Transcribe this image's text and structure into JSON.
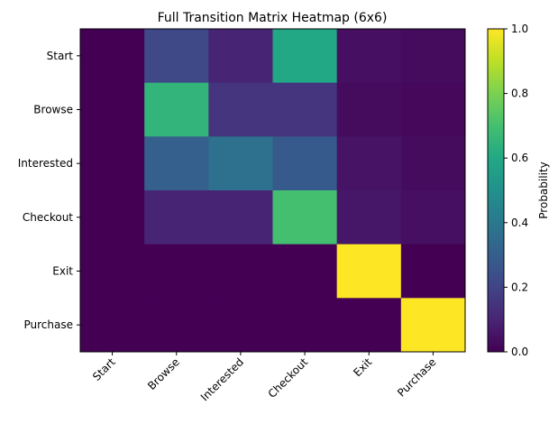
{
  "chart_data": {
    "type": "heatmap",
    "title": "Full Transition Matrix Heatmap (6x6)",
    "rows": [
      "Start",
      "Browse",
      "Interested",
      "Checkout",
      "Exit",
      "Purchase"
    ],
    "cols": [
      "Start",
      "Browse",
      "Interested",
      "Checkout",
      "Exit",
      "Purchase"
    ],
    "values": [
      [
        0.0,
        0.22,
        0.1,
        0.6,
        0.04,
        0.03
      ],
      [
        0.0,
        0.65,
        0.15,
        0.15,
        0.03,
        0.02
      ],
      [
        0.0,
        0.3,
        0.37,
        0.28,
        0.05,
        0.03
      ],
      [
        0.0,
        0.1,
        0.1,
        0.7,
        0.06,
        0.04
      ],
      [
        0.0,
        0.0,
        0.0,
        0.0,
        1.0,
        0.0
      ],
      [
        0.0,
        0.0,
        0.0,
        0.0,
        0.0,
        1.0
      ]
    ],
    "colormap": "viridis",
    "colorbar": {
      "label": "Probability",
      "range": [
        0,
        1
      ],
      "ticks": [
        "0.0",
        "0.2",
        "0.4",
        "0.6",
        "0.8",
        "1.0"
      ]
    },
    "xtick_rotation": 45
  }
}
